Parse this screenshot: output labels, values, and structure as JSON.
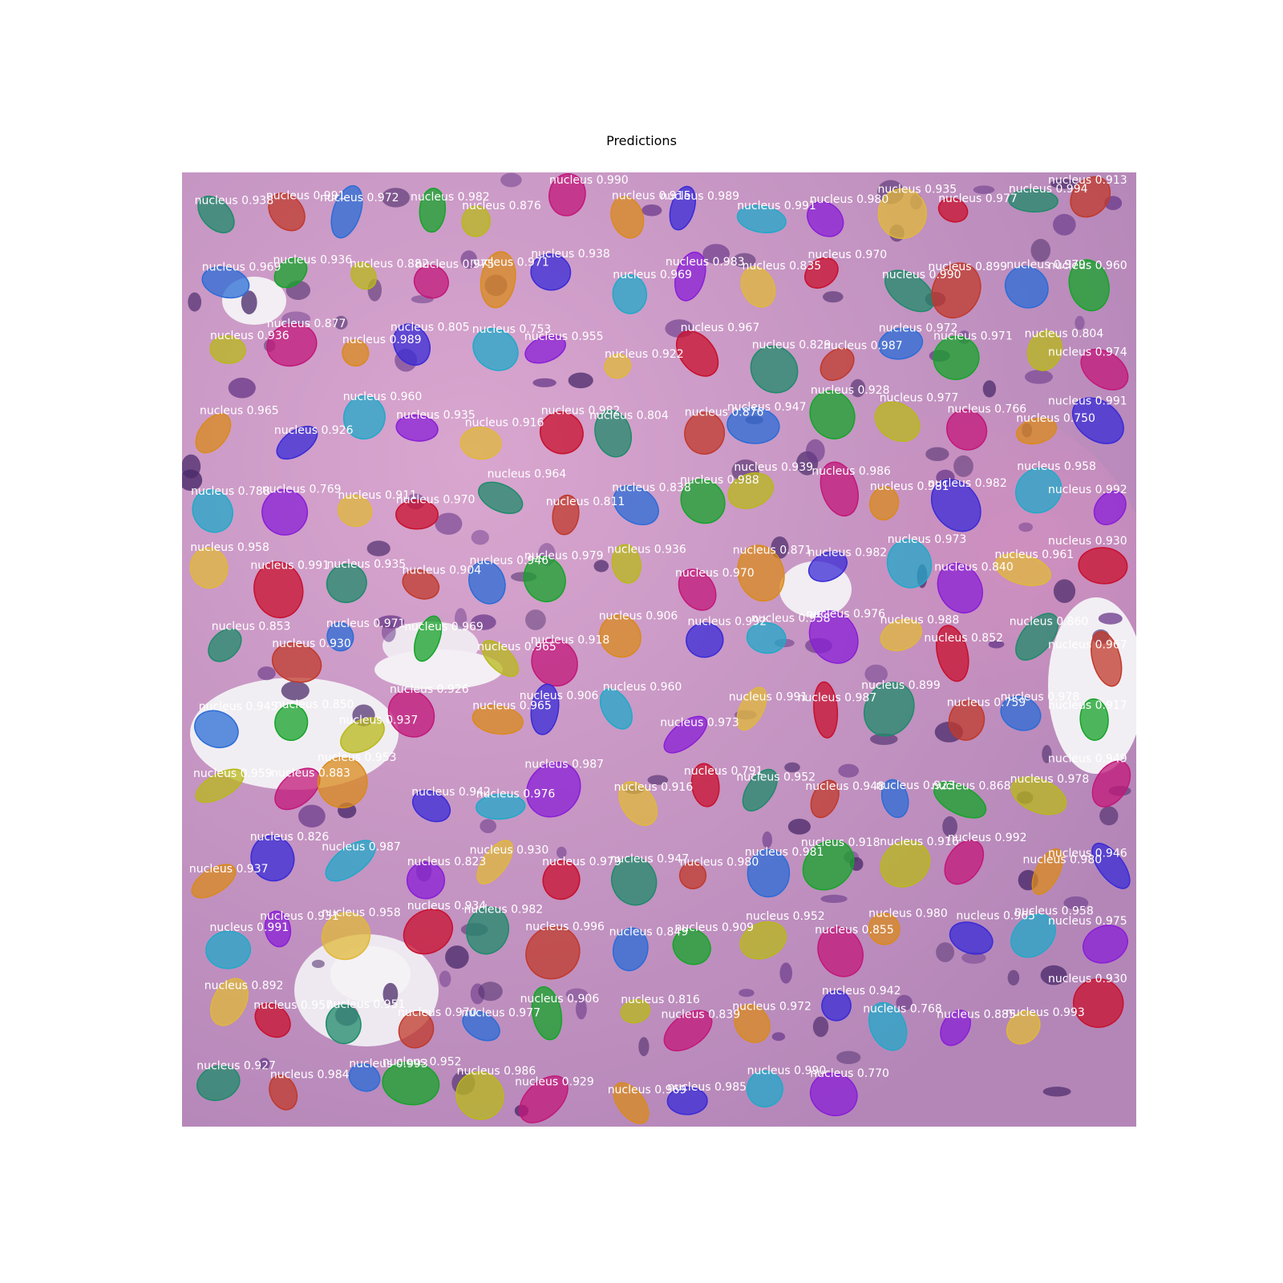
{
  "title": "Predictions",
  "instance_class": "nucleus",
  "colors": [
    "#1f8a6a",
    "#c0392b",
    "#2b6cd6",
    "#16a32a",
    "#b8b81a",
    "#c2187a",
    "#d98a1c",
    "#3a2bd6",
    "#22a8c8",
    "#8a1fd6",
    "#e0b83a",
    "#c8102e"
  ],
  "detections": [
    {
      "label": "nucleus",
      "score": "0.938"
    },
    {
      "label": "nucleus",
      "score": "0.991"
    },
    {
      "label": "nucleus",
      "score": "0.972"
    },
    {
      "label": "nucleus",
      "score": "0.982"
    },
    {
      "label": "nucleus",
      "score": "0.876"
    },
    {
      "label": "nucleus",
      "score": "0.990"
    },
    {
      "label": "nucleus",
      "score": "0.915"
    },
    {
      "label": "nucleus",
      "score": "0.989"
    },
    {
      "label": "nucleus",
      "score": "0.991"
    },
    {
      "label": "nucleus",
      "score": "0.980"
    },
    {
      "label": "nucleus",
      "score": "0.935"
    },
    {
      "label": "nucleus",
      "score": "0.977"
    },
    {
      "label": "nucleus",
      "score": "0.994"
    },
    {
      "label": "nucleus",
      "score": "0.913"
    },
    {
      "label": "nucleus",
      "score": "0.969"
    },
    {
      "label": "nucleus",
      "score": "0.936"
    },
    {
      "label": "nucleus",
      "score": "0.882"
    },
    {
      "label": "nucleus",
      "score": "0.975"
    },
    {
      "label": "nucleus",
      "score": "0.971"
    },
    {
      "label": "nucleus",
      "score": "0.938"
    },
    {
      "label": "nucleus",
      "score": "0.969"
    },
    {
      "label": "nucleus",
      "score": "0.983"
    },
    {
      "label": "nucleus",
      "score": "0.835"
    },
    {
      "label": "nucleus",
      "score": "0.970"
    },
    {
      "label": "nucleus",
      "score": "0.990"
    },
    {
      "label": "nucleus",
      "score": "0.899"
    },
    {
      "label": "nucleus",
      "score": "0.979"
    },
    {
      "label": "nucleus",
      "score": "0.960"
    },
    {
      "label": "nucleus",
      "score": "0.936"
    },
    {
      "label": "nucleus",
      "score": "0.877"
    },
    {
      "label": "nucleus",
      "score": "0.989"
    },
    {
      "label": "nucleus",
      "score": "0.805"
    },
    {
      "label": "nucleus",
      "score": "0.753"
    },
    {
      "label": "nucleus",
      "score": "0.955"
    },
    {
      "label": "nucleus",
      "score": "0.922"
    },
    {
      "label": "nucleus",
      "score": "0.967"
    },
    {
      "label": "nucleus",
      "score": "0.829"
    },
    {
      "label": "nucleus",
      "score": "0.987"
    },
    {
      "label": "nucleus",
      "score": "0.972"
    },
    {
      "label": "nucleus",
      "score": "0.971"
    },
    {
      "label": "nucleus",
      "score": "0.804"
    },
    {
      "label": "nucleus",
      "score": "0.974"
    },
    {
      "label": "nucleus",
      "score": "0.965"
    },
    {
      "label": "nucleus",
      "score": "0.926"
    },
    {
      "label": "nucleus",
      "score": "0.960"
    },
    {
      "label": "nucleus",
      "score": "0.935"
    },
    {
      "label": "nucleus",
      "score": "0.916"
    },
    {
      "label": "nucleus",
      "score": "0.982"
    },
    {
      "label": "nucleus",
      "score": "0.804"
    },
    {
      "label": "nucleus",
      "score": "0.876"
    },
    {
      "label": "nucleus",
      "score": "0.947"
    },
    {
      "label": "nucleus",
      "score": "0.928"
    },
    {
      "label": "nucleus",
      "score": "0.977"
    },
    {
      "label": "nucleus",
      "score": "0.766"
    },
    {
      "label": "nucleus",
      "score": "0.750"
    },
    {
      "label": "nucleus",
      "score": "0.991"
    },
    {
      "label": "nucleus",
      "score": "0.788"
    },
    {
      "label": "nucleus",
      "score": "0.769"
    },
    {
      "label": "nucleus",
      "score": "0.911"
    },
    {
      "label": "nucleus",
      "score": "0.970"
    },
    {
      "label": "nucleus",
      "score": "0.964"
    },
    {
      "label": "nucleus",
      "score": "0.811"
    },
    {
      "label": "nucleus",
      "score": "0.838"
    },
    {
      "label": "nucleus",
      "score": "0.988"
    },
    {
      "label": "nucleus",
      "score": "0.939"
    },
    {
      "label": "nucleus",
      "score": "0.986"
    },
    {
      "label": "nucleus",
      "score": "0.981"
    },
    {
      "label": "nucleus",
      "score": "0.982"
    },
    {
      "label": "nucleus",
      "score": "0.958"
    },
    {
      "label": "nucleus",
      "score": "0.992"
    },
    {
      "label": "nucleus",
      "score": "0.958"
    },
    {
      "label": "nucleus",
      "score": "0.991"
    },
    {
      "label": "nucleus",
      "score": "0.935"
    },
    {
      "label": "nucleus",
      "score": "0.904"
    },
    {
      "label": "nucleus",
      "score": "0.946"
    },
    {
      "label": "nucleus",
      "score": "0.979"
    },
    {
      "label": "nucleus",
      "score": "0.936"
    },
    {
      "label": "nucleus",
      "score": "0.970"
    },
    {
      "label": "nucleus",
      "score": "0.871"
    },
    {
      "label": "nucleus",
      "score": "0.982"
    },
    {
      "label": "nucleus",
      "score": "0.973"
    },
    {
      "label": "nucleus",
      "score": "0.840"
    },
    {
      "label": "nucleus",
      "score": "0.961"
    },
    {
      "label": "nucleus",
      "score": "0.930"
    },
    {
      "label": "nucleus",
      "score": "0.853"
    },
    {
      "label": "nucleus",
      "score": "0.930"
    },
    {
      "label": "nucleus",
      "score": "0.971"
    },
    {
      "label": "nucleus",
      "score": "0.969"
    },
    {
      "label": "nucleus",
      "score": "0.965"
    },
    {
      "label": "nucleus",
      "score": "0.918"
    },
    {
      "label": "nucleus",
      "score": "0.906"
    },
    {
      "label": "nucleus",
      "score": "0.992"
    },
    {
      "label": "nucleus",
      "score": "0.958"
    },
    {
      "label": "nucleus",
      "score": "0.976"
    },
    {
      "label": "nucleus",
      "score": "0.988"
    },
    {
      "label": "nucleus",
      "score": "0.852"
    },
    {
      "label": "nucleus",
      "score": "0.860"
    },
    {
      "label": "nucleus",
      "score": "0.967"
    },
    {
      "label": "nucleus",
      "score": "0.945"
    },
    {
      "label": "nucleus",
      "score": "0.850"
    },
    {
      "label": "nucleus",
      "score": "0.937"
    },
    {
      "label": "nucleus",
      "score": "0.926"
    },
    {
      "label": "nucleus",
      "score": "0.965"
    },
    {
      "label": "nucleus",
      "score": "0.906"
    },
    {
      "label": "nucleus",
      "score": "0.960"
    },
    {
      "label": "nucleus",
      "score": "0.973"
    },
    {
      "label": "nucleus",
      "score": "0.991"
    },
    {
      "label": "nucleus",
      "score": "0.987"
    },
    {
      "label": "nucleus",
      "score": "0.899"
    },
    {
      "label": "nucleus",
      "score": "0.759"
    },
    {
      "label": "nucleus",
      "score": "0.978"
    },
    {
      "label": "nucleus",
      "score": "0.917"
    },
    {
      "label": "nucleus",
      "score": "0.959"
    },
    {
      "label": "nucleus",
      "score": "0.883"
    },
    {
      "label": "nucleus",
      "score": "0.953"
    },
    {
      "label": "nucleus",
      "score": "0.942"
    },
    {
      "label": "nucleus",
      "score": "0.976"
    },
    {
      "label": "nucleus",
      "score": "0.987"
    },
    {
      "label": "nucleus",
      "score": "0.916"
    },
    {
      "label": "nucleus",
      "score": "0.791"
    },
    {
      "label": "nucleus",
      "score": "0.952"
    },
    {
      "label": "nucleus",
      "score": "0.948"
    },
    {
      "label": "nucleus",
      "score": "0.923"
    },
    {
      "label": "nucleus",
      "score": "0.868"
    },
    {
      "label": "nucleus",
      "score": "0.978"
    },
    {
      "label": "nucleus",
      "score": "0.949"
    },
    {
      "label": "nucleus",
      "score": "0.937"
    },
    {
      "label": "nucleus",
      "score": "0.826"
    },
    {
      "label": "nucleus",
      "score": "0.987"
    },
    {
      "label": "nucleus",
      "score": "0.823"
    },
    {
      "label": "nucleus",
      "score": "0.930"
    },
    {
      "label": "nucleus",
      "score": "0.979"
    },
    {
      "label": "nucleus",
      "score": "0.947"
    },
    {
      "label": "nucleus",
      "score": "0.980"
    },
    {
      "label": "nucleus",
      "score": "0.981"
    },
    {
      "label": "nucleus",
      "score": "0.918"
    },
    {
      "label": "nucleus",
      "score": "0.916"
    },
    {
      "label": "nucleus",
      "score": "0.992"
    },
    {
      "label": "nucleus",
      "score": "0.980"
    },
    {
      "label": "nucleus",
      "score": "0.946"
    },
    {
      "label": "nucleus",
      "score": "0.991"
    },
    {
      "label": "nucleus",
      "score": "0.931"
    },
    {
      "label": "nucleus",
      "score": "0.958"
    },
    {
      "label": "nucleus",
      "score": "0.934"
    },
    {
      "label": "nucleus",
      "score": "0.982"
    },
    {
      "label": "nucleus",
      "score": "0.996"
    },
    {
      "label": "nucleus",
      "score": "0.849"
    },
    {
      "label": "nucleus",
      "score": "0.909"
    },
    {
      "label": "nucleus",
      "score": "0.952"
    },
    {
      "label": "nucleus",
      "score": "0.855"
    },
    {
      "label": "nucleus",
      "score": "0.980"
    },
    {
      "label": "nucleus",
      "score": "0.965"
    },
    {
      "label": "nucleus",
      "score": "0.958"
    },
    {
      "label": "nucleus",
      "score": "0.975"
    },
    {
      "label": "nucleus",
      "score": "0.892"
    },
    {
      "label": "nucleus",
      "score": "0.957"
    },
    {
      "label": "nucleus",
      "score": "0.951"
    },
    {
      "label": "nucleus",
      "score": "0.970"
    },
    {
      "label": "nucleus",
      "score": "0.977"
    },
    {
      "label": "nucleus",
      "score": "0.906"
    },
    {
      "label": "nucleus",
      "score": "0.816"
    },
    {
      "label": "nucleus",
      "score": "0.839"
    },
    {
      "label": "nucleus",
      "score": "0.972"
    },
    {
      "label": "nucleus",
      "score": "0.942"
    },
    {
      "label": "nucleus",
      "score": "0.768"
    },
    {
      "label": "nucleus",
      "score": "0.885"
    },
    {
      "label": "nucleus",
      "score": "0.993"
    },
    {
      "label": "nucleus",
      "score": "0.930"
    },
    {
      "label": "nucleus",
      "score": "0.927"
    },
    {
      "label": "nucleus",
      "score": "0.984"
    },
    {
      "label": "nucleus",
      "score": "0.993"
    },
    {
      "label": "nucleus",
      "score": "0.952"
    },
    {
      "label": "nucleus",
      "score": "0.986"
    },
    {
      "label": "nucleus",
      "score": "0.929"
    },
    {
      "label": "nucleus",
      "score": "0.969"
    },
    {
      "label": "nucleus",
      "score": "0.985"
    },
    {
      "label": "nucleus",
      "score": "0.990"
    },
    {
      "label": "nucleus",
      "score": "0.770"
    }
  ]
}
